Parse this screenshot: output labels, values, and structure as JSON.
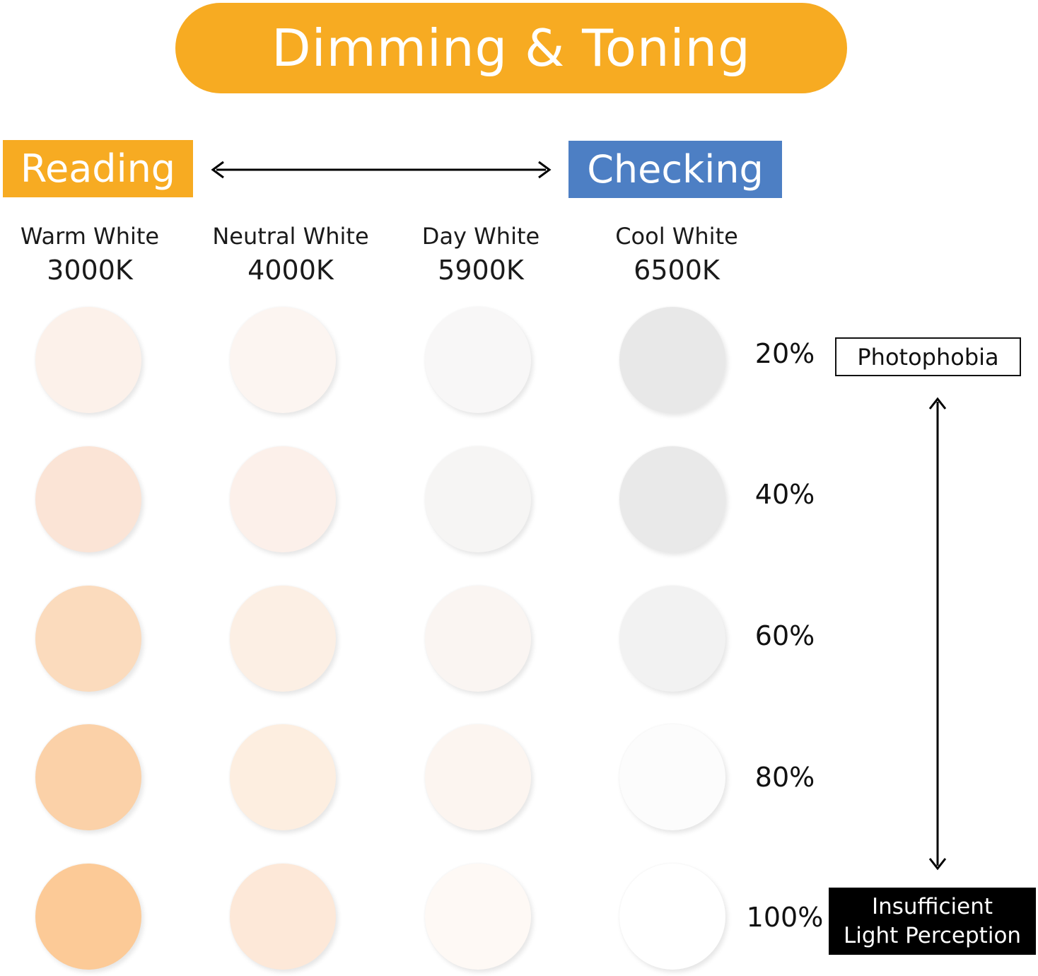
{
  "title": "Dimming & Toning",
  "modes": {
    "left": {
      "label": "Reading",
      "color": "#f7ab22"
    },
    "right": {
      "label": "Checking",
      "color": "#4d7fc4"
    }
  },
  "columns": [
    {
      "name": "Warm White",
      "kelvin": "3000K"
    },
    {
      "name": "Neutral White",
      "kelvin": "4000K"
    },
    {
      "name": "Day White",
      "kelvin": "5900K"
    },
    {
      "name": "Cool White",
      "kelvin": "6500K"
    }
  ],
  "levels": [
    "20%",
    "40%",
    "60%",
    "80%",
    "100%"
  ],
  "swatch_colors": [
    [
      "#fcf1ea",
      "#fcf5f1",
      "#f8f7f7",
      "#e8e8e8"
    ],
    [
      "#fbe4d6",
      "#fcf0ea",
      "#f6f5f4",
      "#e9e9e9"
    ],
    [
      "#fbdbbd",
      "#fcefe4",
      "#faf5f2",
      "#f2f2f2"
    ],
    [
      "#fbd1a8",
      "#fdeee0",
      "#fcf5f0",
      "#fcfcfc"
    ],
    [
      "#fcca97",
      "#fde8d8",
      "#fef9f5",
      "#ffffff"
    ]
  ],
  "scale": {
    "top_label": "Photophobia",
    "bottom_label_line1": "Insufficient",
    "bottom_label_line2": "Light Perception"
  }
}
